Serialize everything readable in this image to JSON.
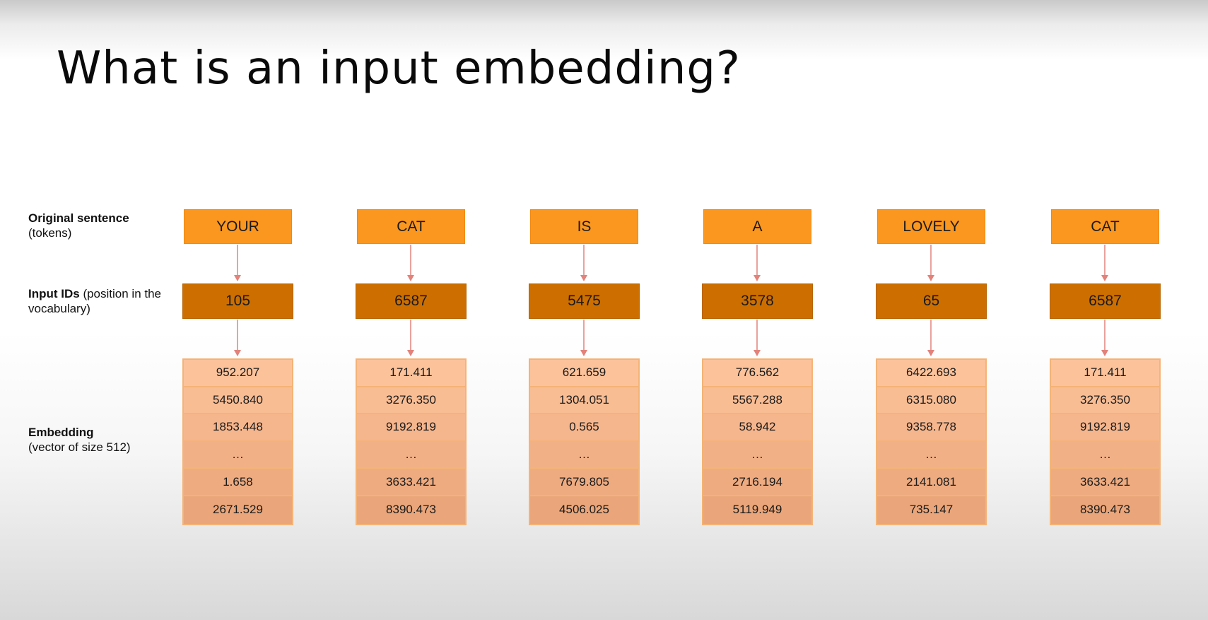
{
  "title": "What is an input embedding?",
  "labels": {
    "tokens_bold": "Original sentence",
    "tokens_rest": "(tokens)",
    "ids_bold": "Input IDs",
    "ids_rest": " (position in the vocabulary)",
    "emb_bold": "Embedding",
    "emb_rest": "(vector of size 512)"
  },
  "columns": [
    {
      "token": "YOUR",
      "id": "105",
      "embedding": [
        "952.207",
        "5450.840",
        "1853.448",
        "…",
        "1.658",
        "2671.529"
      ]
    },
    {
      "token": "CAT",
      "id": "6587",
      "embedding": [
        "171.411",
        "3276.350",
        "9192.819",
        "…",
        "3633.421",
        "8390.473"
      ]
    },
    {
      "token": "IS",
      "id": "5475",
      "embedding": [
        "621.659",
        "1304.051",
        "0.565",
        "…",
        "7679.805",
        "4506.025"
      ]
    },
    {
      "token": "A",
      "id": "3578",
      "embedding": [
        "776.562",
        "5567.288",
        "58.942",
        "…",
        "2716.194",
        "5119.949"
      ]
    },
    {
      "token": "LOVELY",
      "id": "65",
      "embedding": [
        "6422.693",
        "6315.080",
        "9358.778",
        "…",
        "2141.081",
        "735.147"
      ]
    },
    {
      "token": "CAT",
      "id": "6587",
      "embedding": [
        "171.411",
        "3276.350",
        "9192.819",
        "…",
        "3633.421",
        "8390.473"
      ]
    }
  ],
  "colors": {
    "token_fill": "#fb961f",
    "id_fill": "#cc6f00",
    "embedding_fill": "#fcc29a",
    "embedding_border": "#f4b376",
    "arrow": "#e2827a"
  }
}
